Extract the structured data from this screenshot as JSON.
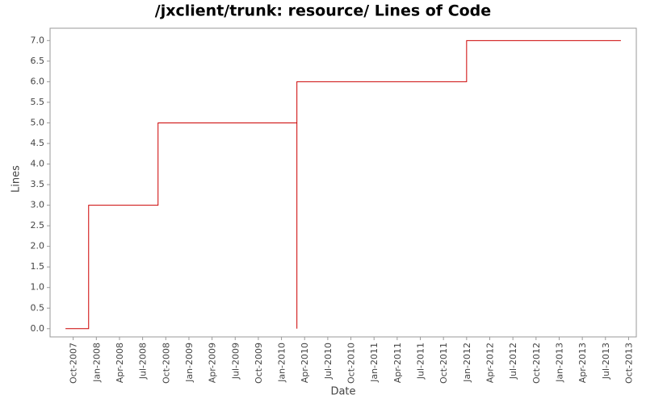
{
  "chart_data": {
    "type": "line",
    "title": "/jxclient/trunk: resource/ Lines of Code",
    "x_label": "Date",
    "y_label": "Lines",
    "x": [
      "2007-09",
      "2007-12",
      "2007-12",
      "2007-12",
      "2008-09",
      "2008-09",
      "2010-03",
      "2010-03",
      "2010-03",
      "2012-01",
      "2012-01",
      "2013-09"
    ],
    "series": [
      {
        "name": "Lines",
        "color": "#cc0000",
        "values": [
          0,
          0,
          1,
          3,
          3,
          5,
          5,
          0,
          6,
          6,
          7,
          7
        ]
      }
    ],
    "xlim": [
      "2007-07",
      "2013-11"
    ],
    "xticks": [
      {
        "value": "2007-10",
        "label": "Oct-2007"
      },
      {
        "value": "2008-01",
        "label": "Jan-2008"
      },
      {
        "value": "2008-04",
        "label": "Apr-2008"
      },
      {
        "value": "2008-07",
        "label": "Jul-2008"
      },
      {
        "value": "2008-10",
        "label": "Oct-2008"
      },
      {
        "value": "2009-01",
        "label": "Jan-2009"
      },
      {
        "value": "2009-04",
        "label": "Apr-2009"
      },
      {
        "value": "2009-07",
        "label": "Jul-2009"
      },
      {
        "value": "2009-10",
        "label": "Oct-2009"
      },
      {
        "value": "2010-01",
        "label": "Jan-2010"
      },
      {
        "value": "2010-04",
        "label": "Apr-2010"
      },
      {
        "value": "2010-07",
        "label": "Jul-2010"
      },
      {
        "value": "2010-10",
        "label": "Oct-2010"
      },
      {
        "value": "2011-01",
        "label": "Jan-2011"
      },
      {
        "value": "2011-04",
        "label": "Apr-2011"
      },
      {
        "value": "2011-07",
        "label": "Jul-2011"
      },
      {
        "value": "2011-10",
        "label": "Oct-2011"
      },
      {
        "value": "2012-01",
        "label": "Jan-2012"
      },
      {
        "value": "2012-04",
        "label": "Apr-2012"
      },
      {
        "value": "2012-07",
        "label": "Jul-2012"
      },
      {
        "value": "2012-10",
        "label": "Oct-2012"
      },
      {
        "value": "2013-01",
        "label": "Jan-2013"
      },
      {
        "value": "2013-04",
        "label": "Apr-2013"
      },
      {
        "value": "2013-07",
        "label": "Jul-2013"
      },
      {
        "value": "2013-10",
        "label": "Oct-2013"
      }
    ],
    "ylim": [
      -0.2,
      7.3
    ],
    "yticks": [
      {
        "value": 0,
        "label": "0.0"
      },
      0.5,
      {
        "value": 1,
        "label": "1.0"
      },
      1.5,
      {
        "value": 2,
        "label": "2.0"
      },
      2.5,
      {
        "value": 3,
        "label": "3.0"
      },
      3.5,
      {
        "value": 4,
        "label": "4.0"
      },
      4.5,
      {
        "value": 5,
        "label": "5.0"
      },
      5.5,
      {
        "value": 6,
        "label": "6.0"
      },
      6.5,
      {
        "value": 7,
        "label": "7.0"
      }
    ],
    "grid": false
  }
}
